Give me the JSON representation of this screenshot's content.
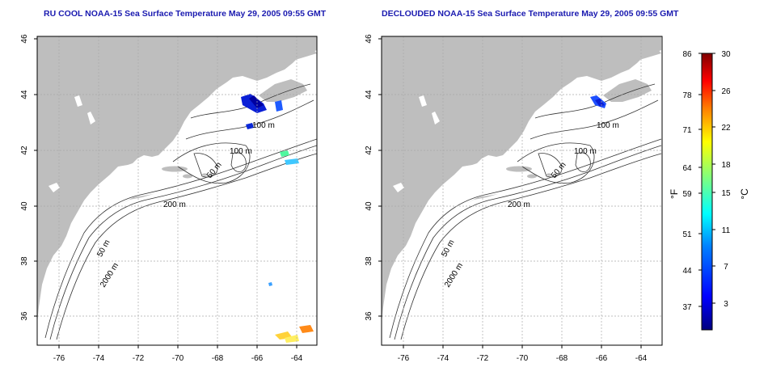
{
  "panels": [
    {
      "title": "RU COOL NOAA-15 Sea Surface Temperature May 29, 2005 09:55 GMT",
      "contour_labels": [
        "100 m",
        "100 m",
        "50 m",
        "200 m",
        "50 m",
        "2000 m"
      ]
    },
    {
      "title": "DECLOUDED NOAA-15 Sea Surface Temperature May 29, 2005 09:55 GMT",
      "contour_labels": [
        "100 m",
        "100 m",
        "50 m",
        "200 m",
        "50 m",
        "2000 m"
      ]
    }
  ],
  "axes": {
    "lon_ticks": [
      "-76",
      "-74",
      "-72",
      "-70",
      "-68",
      "-66",
      "-64"
    ],
    "lat_ticks": [
      "36",
      "38",
      "40",
      "42",
      "44",
      "46"
    ]
  },
  "colorbar": {
    "f_ticks": [
      "86",
      "78",
      "71",
      "64",
      "59",
      "51",
      "44",
      "37"
    ],
    "c_ticks": [
      "30",
      "26",
      "22",
      "18",
      "15",
      "11",
      "7",
      "3"
    ],
    "f_unit": "°F",
    "c_unit": "°C",
    "colors": [
      "#00007f",
      "#0000ff",
      "#007fff",
      "#00ffff",
      "#7fff7f",
      "#ffff00",
      "#ff7f00",
      "#ff0000",
      "#7f0000"
    ]
  },
  "land_color": "#bebebe",
  "title_color": "#1a1ab0"
}
